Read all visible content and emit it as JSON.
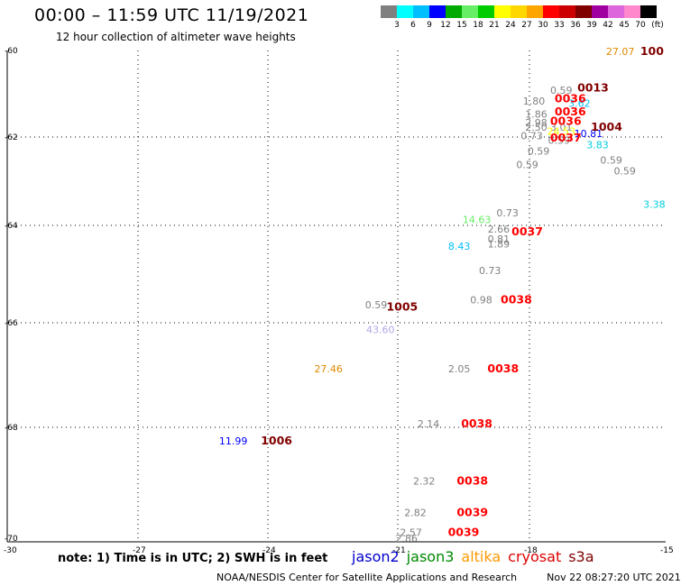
{
  "header": {
    "title": "00:00 – 11:59 UTC 11/19/2021",
    "subtitle": "12 hour collection of altimeter wave heights"
  },
  "scale": {
    "unit": "(ft)",
    "colors": [
      "#808080",
      "#00ffff",
      "#00bfff",
      "#0000ff",
      "#00aa00",
      "#66ee66",
      "#00cc00",
      "#ffff00",
      "#ffd700",
      "#ffa500",
      "#ff0000",
      "#cc0000",
      "#800000",
      "#a000a0",
      "#dd66dd",
      "#ff88cc",
      "#000000"
    ],
    "labels": [
      "3",
      "6",
      "9",
      "12",
      "15",
      "18",
      "21",
      "24",
      "27",
      "30",
      "33",
      "36",
      "39",
      "42",
      "45",
      "70"
    ]
  },
  "chart_data": {
    "type": "scatter",
    "title": "00:00 – 11:59 UTC 11/19/2021",
    "subtitle": "12 hour collection of altimeter wave heights",
    "xlim": [
      -30,
      -15
    ],
    "ylim": [
      -70,
      -60
    ],
    "xticks": [
      "-27",
      "-24",
      "-21",
      "-18",
      "-15"
    ],
    "yticks": [
      "-60",
      "-62",
      "-64",
      "-66",
      "-68",
      "-70"
    ],
    "corner_label": "-30",
    "grid": true,
    "swh_points": [
      {
        "lon": -16.0,
        "lat": -60.1,
        "text": "27.07",
        "color": "#e08a00"
      },
      {
        "lon": -17.3,
        "lat": -61.0,
        "text": "0.59",
        "color": "#808080"
      },
      {
        "lon": -17.9,
        "lat": -61.25,
        "text": "1.80",
        "color": "#808080"
      },
      {
        "lon": -16.9,
        "lat": -61.3,
        "text": "3.62",
        "color": "#00bfff"
      },
      {
        "lon": -17.85,
        "lat": -61.55,
        "text": "1.86",
        "color": "#808080"
      },
      {
        "lon": -17.85,
        "lat": -61.75,
        "text": "2.98",
        "color": "#808080"
      },
      {
        "lon": -17.85,
        "lat": -61.85,
        "text": "2.50",
        "color": "#808080"
      },
      {
        "lon": -17.3,
        "lat": -61.85,
        "text": "3.01",
        "color": "#808080"
      },
      {
        "lon": -17.3,
        "lat": -61.95,
        "text": "24.53",
        "color": "#ffff00"
      },
      {
        "lon": -17.95,
        "lat": -62.05,
        "text": "0.73",
        "color": "#808080"
      },
      {
        "lon": -17.35,
        "lat": -62.15,
        "text": "0.59",
        "color": "#808080"
      },
      {
        "lon": -16.7,
        "lat": -62.0,
        "text": "10.81",
        "color": "#0000ff"
      },
      {
        "lon": -16.5,
        "lat": -62.25,
        "text": "3.83",
        "color": "#00ccdd"
      },
      {
        "lon": -17.8,
        "lat": -62.4,
        "text": "0.59",
        "color": "#808080"
      },
      {
        "lon": -18.05,
        "lat": -62.7,
        "text": "0.59",
        "color": "#808080"
      },
      {
        "lon": -16.2,
        "lat": -62.6,
        "text": "0.59",
        "color": "#808080"
      },
      {
        "lon": -15.9,
        "lat": -62.85,
        "text": "0.59",
        "color": "#808080"
      },
      {
        "lon": -15.25,
        "lat": -63.6,
        "text": "3.38",
        "color": "#00ccdd"
      },
      {
        "lon": -18.5,
        "lat": -63.8,
        "text": "0.73",
        "color": "#808080"
      },
      {
        "lon": -19.2,
        "lat": -63.95,
        "text": "14.63",
        "color": "#66ee66"
      },
      {
        "lon": -18.7,
        "lat": -64.15,
        "text": "2.66",
        "color": "#808080"
      },
      {
        "lon": -18.7,
        "lat": -64.35,
        "text": "0.81",
        "color": "#808080"
      },
      {
        "lon": -18.7,
        "lat": -64.45,
        "text": "1.89",
        "color": "#808080"
      },
      {
        "lon": -19.6,
        "lat": -64.5,
        "text": "8.43",
        "color": "#00bfff"
      },
      {
        "lon": -18.9,
        "lat": -65.0,
        "text": "0.73",
        "color": "#808080"
      },
      {
        "lon": -19.1,
        "lat": -65.6,
        "text": "0.98",
        "color": "#808080"
      },
      {
        "lon": -21.5,
        "lat": -65.7,
        "text": "0.59",
        "color": "#808080"
      },
      {
        "lon": -21.4,
        "lat": -66.2,
        "text": "43.60",
        "color": "#b0a8e8"
      },
      {
        "lon": -22.6,
        "lat": -66.95,
        "text": "27.46",
        "color": "#e08a00"
      },
      {
        "lon": -19.6,
        "lat": -66.95,
        "text": "2.05",
        "color": "#808080"
      },
      {
        "lon": -20.3,
        "lat": -68.0,
        "text": "2.14",
        "color": "#808080"
      },
      {
        "lon": -24.8,
        "lat": -68.3,
        "text": "11.99",
        "color": "#0000ff"
      },
      {
        "lon": -20.4,
        "lat": -69.0,
        "text": "2.32",
        "color": "#808080"
      },
      {
        "lon": -20.6,
        "lat": -69.55,
        "text": "2.82",
        "color": "#808080"
      },
      {
        "lon": -20.7,
        "lat": -69.9,
        "text": "2.57",
        "color": "#808080"
      },
      {
        "lon": -20.8,
        "lat": -70.0,
        "text": "2.86",
        "color": "#808080"
      }
    ],
    "rev_points": [
      {
        "lon": -15.3,
        "lat": -60.1,
        "text": "100",
        "color": "#800000"
      },
      {
        "lon": -16.6,
        "lat": -60.95,
        "text": "0013",
        "color": "#800000"
      },
      {
        "lon": -17.1,
        "lat": -61.2,
        "text": "0036",
        "color": "#ff0000"
      },
      {
        "lon": -17.1,
        "lat": -61.5,
        "text": "0036",
        "color": "#ff0000"
      },
      {
        "lon": -17.2,
        "lat": -61.72,
        "text": "0036",
        "color": "#ff0000"
      },
      {
        "lon": -16.3,
        "lat": -61.85,
        "text": "1004",
        "color": "#800000"
      },
      {
        "lon": -17.2,
        "lat": -62.1,
        "text": "0037",
        "color": "#ff0000"
      },
      {
        "lon": -18.05,
        "lat": -64.2,
        "text": "0037",
        "color": "#ff0000"
      },
      {
        "lon": -18.3,
        "lat": -65.6,
        "text": "0038",
        "color": "#ff0000"
      },
      {
        "lon": -20.9,
        "lat": -65.75,
        "text": "1005",
        "color": "#800000"
      },
      {
        "lon": -18.6,
        "lat": -66.95,
        "text": "0038",
        "color": "#ff0000"
      },
      {
        "lon": -19.2,
        "lat": -68.0,
        "text": "0038",
        "color": "#ff0000"
      },
      {
        "lon": -23.8,
        "lat": -68.3,
        "text": "1006",
        "color": "#800000"
      },
      {
        "lon": -19.3,
        "lat": -69.0,
        "text": "0038",
        "color": "#ff0000"
      },
      {
        "lon": -19.3,
        "lat": -69.55,
        "text": "0039",
        "color": "#ff0000"
      },
      {
        "lon": -19.5,
        "lat": -69.9,
        "text": "0039",
        "color": "#ff0000"
      }
    ]
  },
  "note": "note: 1) Time is in UTC; 2) SWH is in feet",
  "legend": [
    {
      "label": "jason2",
      "color": "#0000cc"
    },
    {
      "label": "jason3",
      "color": "#008800"
    },
    {
      "label": "altika",
      "color": "#ff9900"
    },
    {
      "label": "cryosat",
      "color": "#dd0000"
    },
    {
      "label": "s3a",
      "color": "#800000"
    }
  ],
  "footer": {
    "center": "NOAA/NESDIS Center for Satellite Applications and Research",
    "timestamp": "Nov 22 08:27:20 UTC 2021"
  }
}
